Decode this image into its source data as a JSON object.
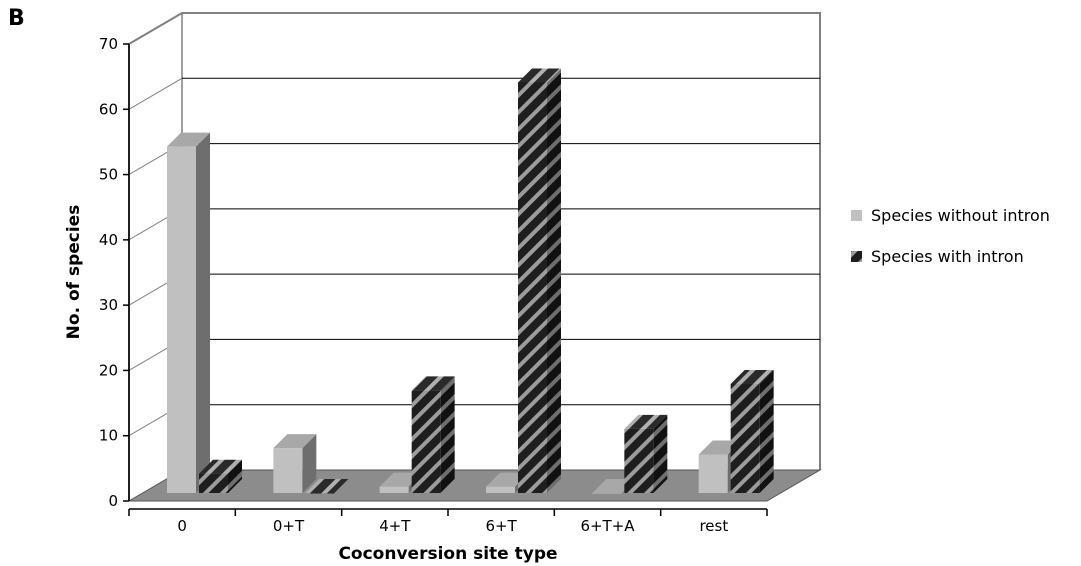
{
  "panel_label": "B",
  "colors": {
    "without_intron_front": "#c0c0c0",
    "with_intron_base": "#222222",
    "with_intron_stripe": "#9a9a9a",
    "floor": "#8c8c8c",
    "wall_line": "#808080"
  },
  "chart_data": {
    "type": "bar",
    "style": "3d-clustered",
    "title": "",
    "xlabel": "Coconversion site type",
    "ylabel": "No. of species",
    "ylim": [
      0,
      70
    ],
    "yticks": [
      "0",
      "10",
      "20",
      "30",
      "40",
      "50",
      "60",
      "70"
    ],
    "categories": [
      "0",
      "0+T",
      "4+T",
      "6+T",
      "6+T+A",
      "rest"
    ],
    "series": [
      {
        "name": "Species without intron",
        "values": [
          54,
          7,
          1,
          1,
          0,
          6
        ]
      },
      {
        "name": "Species with intron",
        "values": [
          3,
          0,
          16,
          64,
          10,
          17
        ]
      }
    ],
    "grid": true,
    "legend_position": "right"
  }
}
